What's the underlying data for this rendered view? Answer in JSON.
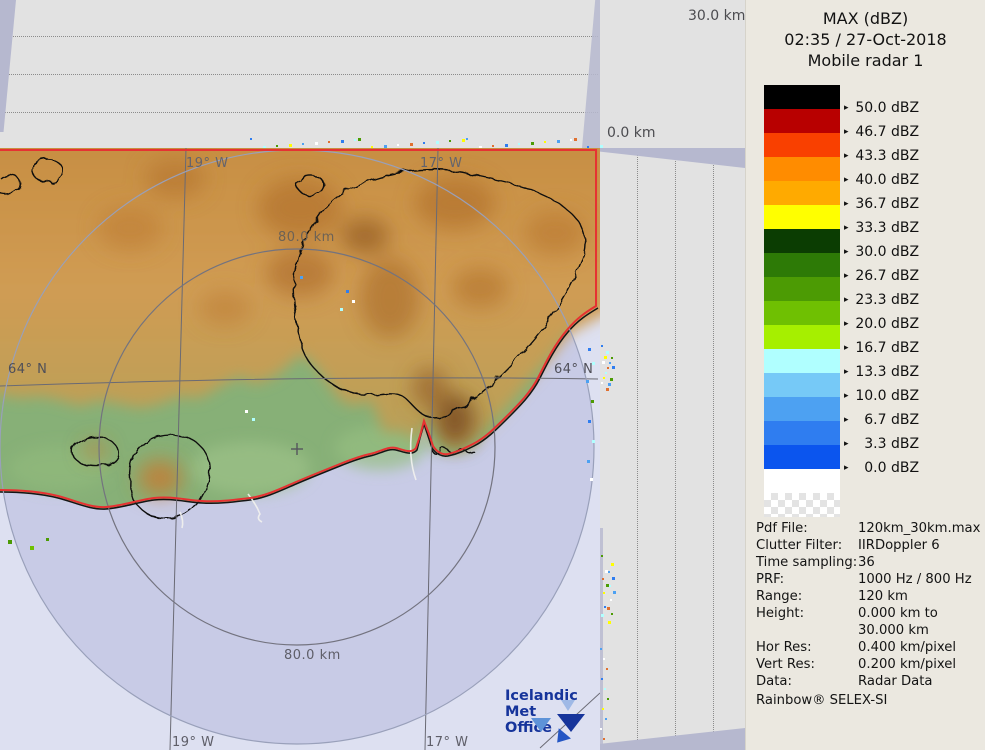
{
  "panel": {
    "title": "MAX (dBZ)",
    "datetime": "02:35 / 27-Oct-2018",
    "radar_name": "Mobile radar 1",
    "scale": {
      "unit": "dBZ",
      "entries": [
        {
          "color": "#000000",
          "value": "50.0"
        },
        {
          "color": "#b80000",
          "value": "46.7"
        },
        {
          "color": "#f94000",
          "value": "43.3"
        },
        {
          "color": "#ff8c00",
          "value": "40.0"
        },
        {
          "color": "#ffaa00",
          "value": "36.7"
        },
        {
          "color": "#ffff00",
          "value": "33.3"
        },
        {
          "color": "#0b3d02",
          "value": "30.0"
        },
        {
          "color": "#2d7a06",
          "value": "26.7"
        },
        {
          "color": "#4c9b04",
          "value": "23.3"
        },
        {
          "color": "#6fc002",
          "value": "20.0"
        },
        {
          "color": "#a6ef00",
          "value": "16.7"
        },
        {
          "color": "#b0ffff",
          "value": "13.3"
        },
        {
          "color": "#76c9f7",
          "value": "10.0"
        },
        {
          "color": "#4da1f2",
          "value": "6.7"
        },
        {
          "color": "#2f7df0",
          "value": "3.3"
        },
        {
          "color": "#0b55ee",
          "value": "0.0"
        }
      ]
    },
    "metadata": {
      "rows": [
        {
          "label": "Pdf File:",
          "value": "120km_30km.max"
        },
        {
          "label": "Clutter Filter:",
          "value": "IIRDoppler 6"
        },
        {
          "label": "Time sampling:",
          "value": "36"
        },
        {
          "label": "PRF:",
          "value": "1000 Hz / 800 Hz"
        },
        {
          "label": "Range:",
          "value": "120 km"
        },
        {
          "label": "Height:",
          "value": "0.000 km to\n30.000 km"
        },
        {
          "label": "Hor Res:",
          "value": "0.400 km/pixel"
        },
        {
          "label": "Vert Res:",
          "value": "0.200 km/pixel"
        },
        {
          "label": "Data:",
          "value": "Radar Data"
        }
      ],
      "footer": "Rainbow® SELEX-SI"
    }
  },
  "projection": {
    "height_axis_max": "30.0 km",
    "height_axis_min": "0.0 km"
  },
  "map": {
    "range_ring_label_top": "80.0 km",
    "range_ring_label_bottom": "80.0 km",
    "latitude_label_left": "64° N",
    "latitude_label_right": "64° N",
    "meridian_19_top": "19° W",
    "meridian_17_top": "17° W",
    "meridian_19_bottom": "19° W",
    "meridian_17_bottom": "17° W",
    "logo_line1": "Icelandic Met",
    "logo_line2": "Office"
  },
  "colors": {
    "data_boundary": "#e63232",
    "sea_in_range": "#c8cbe6",
    "sea_out_of_range": "#dde0f1",
    "land": "#87b077",
    "echo": "#d0914a",
    "panel_bg": "#ebe8e0",
    "strip_bg": "#e2e2e2"
  }
}
